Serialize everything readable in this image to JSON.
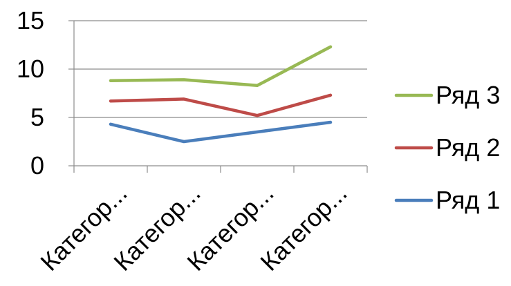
{
  "chart_data": {
    "type": "line",
    "categories": [
      "Категор...",
      "Категор...",
      "Категор...",
      "Категор..."
    ],
    "series": [
      {
        "name": "Ряд 1",
        "values": [
          4.3,
          2.5,
          3.5,
          4.5
        ],
        "color": "#4a7ebb"
      },
      {
        "name": "Ряд 2",
        "values": [
          6.7,
          6.9,
          5.2,
          7.3
        ],
        "color": "#be4b48"
      },
      {
        "name": "Ряд 3",
        "values": [
          8.8,
          8.9,
          8.3,
          12.3
        ],
        "color": "#98b954"
      }
    ],
    "legend_order": [
      "Ряд 3",
      "Ряд 2",
      "Ряд 1"
    ],
    "ylim": [
      0,
      15
    ],
    "yticks": [
      0,
      5,
      10,
      15
    ],
    "grid": true,
    "legend": "right",
    "title": "",
    "xlabel": "",
    "ylabel": ""
  }
}
